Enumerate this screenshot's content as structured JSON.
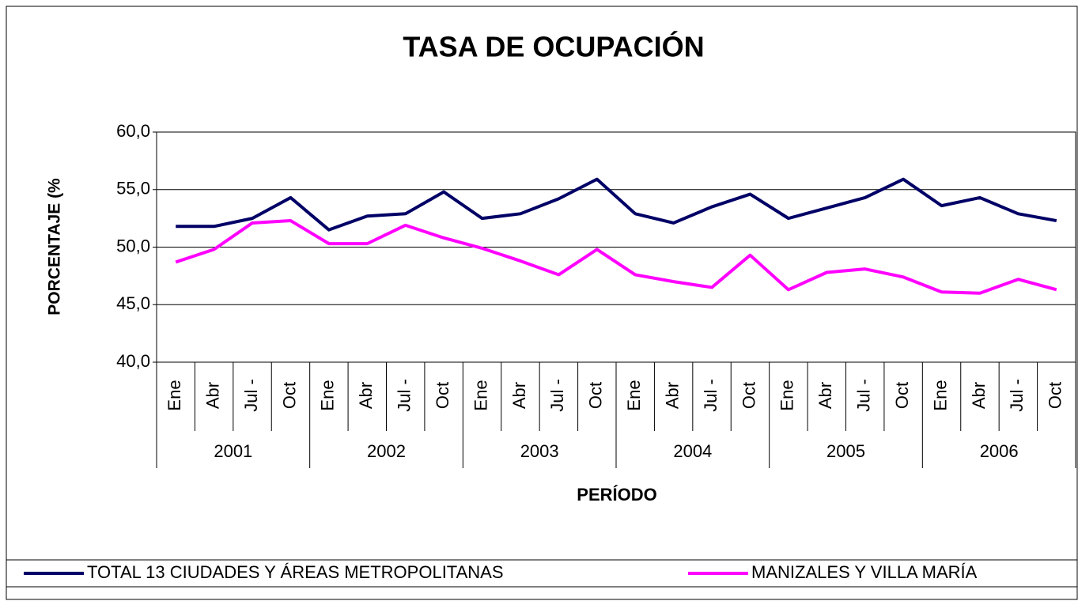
{
  "chart_data": {
    "type": "line",
    "title": "TASA DE OCUPACIÓN",
    "x_label": "PERÍODO",
    "y_label": "PORCENTAJE (%",
    "categories": [
      "Ene",
      "Abr",
      "Jul -",
      "Oct",
      "Ene",
      "Abr",
      "Jul -",
      "Oct",
      "Ene",
      "Abr",
      "Jul -",
      "Oct",
      "Ene",
      "Abr",
      "Jul -",
      "Oct",
      "Ene",
      "Abr",
      "Jul -",
      "Oct",
      "Ene",
      "Abr",
      "Jul -",
      "Oct"
    ],
    "groups": [
      "2001",
      "2002",
      "2003",
      "2004",
      "2005",
      "2006"
    ],
    "series": [
      {
        "name": "TOTAL 13 CIUDADES Y ÁREAS METROPOLITANAS",
        "color": "#000066",
        "values": [
          51.8,
          51.8,
          52.5,
          54.3,
          51.5,
          52.7,
          52.9,
          54.8,
          52.5,
          52.9,
          54.2,
          55.9,
          52.9,
          52.1,
          53.5,
          54.6,
          52.5,
          53.4,
          54.3,
          55.9,
          53.6,
          54.3,
          52.9,
          52.3
        ]
      },
      {
        "name": "MANIZALES Y VILLA MARÍA",
        "color": "#ff00ff",
        "values": [
          48.7,
          49.8,
          52.1,
          52.3,
          50.3,
          50.3,
          51.9,
          50.8,
          49.9,
          48.8,
          47.6,
          49.8,
          47.6,
          47.0,
          46.5,
          49.3,
          46.3,
          47.8,
          48.1,
          47.4,
          46.1,
          46.0,
          47.2,
          46.3
        ]
      }
    ],
    "ylim": [
      40,
      60
    ],
    "yticks": [
      {
        "value": 40,
        "label": "40,0"
      },
      {
        "value": 45,
        "label": "45,0"
      },
      {
        "value": 50,
        "label": "50,0"
      },
      {
        "value": 55,
        "label": "55,0"
      },
      {
        "value": 60,
        "label": "60,0"
      }
    ],
    "grid": true
  }
}
